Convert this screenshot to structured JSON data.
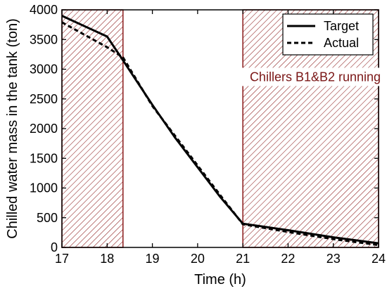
{
  "chart_data": {
    "type": "line",
    "xlabel": "Time (h)",
    "ylabel": "Chilled water mass in the tank (ton)",
    "xlim": [
      17,
      24
    ],
    "ylim": [
      0,
      4000
    ],
    "xticks": [
      17,
      18,
      19,
      20,
      21,
      22,
      23,
      24
    ],
    "yticks": [
      0,
      500,
      1000,
      1500,
      2000,
      2500,
      3000,
      3500,
      4000
    ],
    "grid": false,
    "legend_position": "top-right",
    "series": [
      {
        "name": "Target",
        "style": "solid",
        "x": [
          17,
          18,
          18.35,
          19,
          19.5,
          20,
          20.5,
          21,
          22,
          23,
          24
        ],
        "y": [
          3900,
          3550,
          3150,
          2400,
          1850,
          1350,
          850,
          400,
          290,
          170,
          70
        ]
      },
      {
        "name": "Actual",
        "style": "dashed",
        "x": [
          17,
          18,
          18.35,
          19,
          19.5,
          20,
          20.5,
          21,
          22,
          23,
          24
        ],
        "y": [
          3790,
          3370,
          3200,
          2380,
          1880,
          1380,
          880,
          390,
          260,
          140,
          40
        ]
      }
    ],
    "shaded_regions": [
      {
        "x_start": 17,
        "x_end": 18.35
      },
      {
        "x_start": 21,
        "x_end": 24
      }
    ],
    "annotations": [
      {
        "text": "Chillers B1&B2 running",
        "x": 22.6,
        "y": 2800
      }
    ],
    "colors": {
      "line": "#000000",
      "hatch": "#8b1a1a",
      "annotation_text": "#7a1515",
      "annotation_bg": "#ffffff"
    }
  }
}
